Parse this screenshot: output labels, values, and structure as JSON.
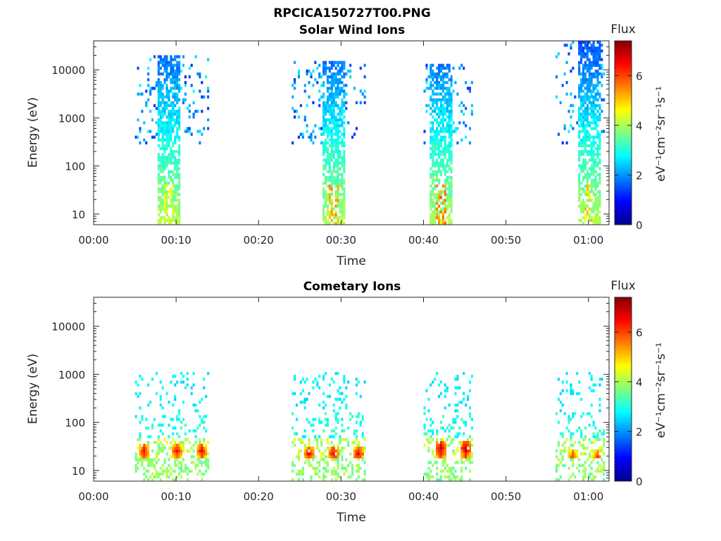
{
  "figure_title": "RPCICA150727T00.PNG",
  "colorbar": {
    "title": "Flux",
    "label": "eV⁻¹cm⁻²sr⁻¹s⁻¹",
    "ticks": [
      "0",
      "2",
      "4",
      "6"
    ],
    "range": [
      0,
      7.4
    ],
    "colormap": "jet"
  },
  "chart_data": [
    {
      "type": "heatmap",
      "title": "Solar Wind Ions",
      "xlabel": "Time",
      "ylabel": "Energy (eV)",
      "xlim_minutes": [
        0,
        62.5
      ],
      "ylim": [
        6,
        40000
      ],
      "yscale": "log",
      "x_tick_labels": [
        "00:00",
        "00:10",
        "00:20",
        "00:30",
        "00:40",
        "00:50",
        "01:00"
      ],
      "y_tick_labels": [
        "10",
        "100",
        "1000",
        "10000"
      ],
      "bursts": [
        {
          "start": "00:05",
          "end": "00:14",
          "core": "00:09",
          "flux_min": 1.2,
          "flux_max": 4.8,
          "emax_ev": 20000
        },
        {
          "start": "00:24",
          "end": "00:33",
          "core": "00:29",
          "flux_min": 1.2,
          "flux_max": 5.6,
          "emax_ev": 15000
        },
        {
          "start": "00:40",
          "end": "00:46",
          "core": "00:42",
          "flux_min": 1.2,
          "flux_max": 5.9,
          "emax_ev": 14000
        },
        {
          "start": "00:56",
          "end": "01:02",
          "core": "01:00",
          "flux_min": 1.2,
          "flux_max": 5.3,
          "emax_ev": 38000
        }
      ]
    },
    {
      "type": "heatmap",
      "title": "Cometary Ions",
      "xlabel": "Time",
      "ylabel": "Energy (eV)",
      "xlim_minutes": [
        0,
        62.5
      ],
      "ylim": [
        6,
        40000
      ],
      "yscale": "log",
      "x_tick_labels": [
        "00:00",
        "00:10",
        "00:20",
        "00:30",
        "00:40",
        "00:50",
        "01:00"
      ],
      "y_tick_labels": [
        "10",
        "100",
        "1000",
        "10000"
      ],
      "bursts": [
        {
          "start": "00:05",
          "end": "00:14",
          "peaks": [
            "00:06",
            "00:10",
            "00:13"
          ],
          "peak_flux": 6.8,
          "peak_energy_ev": 25
        },
        {
          "start": "00:24",
          "end": "00:33",
          "peaks": [
            "00:26",
            "00:29",
            "00:32"
          ],
          "peak_flux": 6.9,
          "peak_energy_ev": 22
        },
        {
          "start": "00:40",
          "end": "00:46",
          "peaks": [
            "00:42",
            "00:45"
          ],
          "peak_flux": 7.2,
          "peak_energy_ev": 28
        },
        {
          "start": "00:56",
          "end": "01:02",
          "peaks": [
            "00:58",
            "01:01"
          ],
          "peak_flux": 6.5,
          "peak_energy_ev": 18
        }
      ]
    }
  ]
}
